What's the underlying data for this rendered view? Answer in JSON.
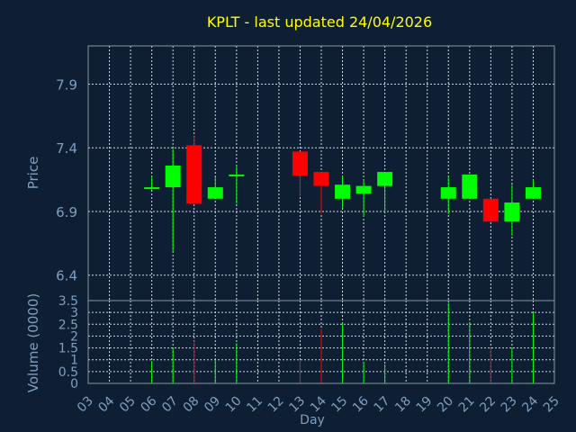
{
  "chart_data": {
    "title": "KPLT - last updated 24/04/2026",
    "type": "candlestick",
    "xlabel": "Day",
    "x_ticks": [
      "03",
      "04",
      "05",
      "06",
      "07",
      "08",
      "09",
      "10",
      "11",
      "12",
      "13",
      "14",
      "15",
      "16",
      "17",
      "18",
      "19",
      "20",
      "21",
      "22",
      "23",
      "24",
      "25"
    ],
    "grid": true,
    "colors": {
      "up": "#00ff00",
      "down": "#ff0000",
      "background": "#0f1f33",
      "title": "#ffff00",
      "axis_text": "#7f9fbf",
      "grid": "#d0d8e0"
    },
    "price_panel": {
      "ylabel": "Price",
      "ylim": [
        6.2,
        8.2
      ],
      "y_ticks": [
        "6.4",
        "6.9",
        "7.4",
        "7.9"
      ],
      "candles": [
        {
          "day": 6,
          "open": 7.08,
          "close": 7.09,
          "high": 7.18,
          "low": 7.07
        },
        {
          "day": 7,
          "open": 7.09,
          "close": 7.26,
          "high": 7.39,
          "low": 6.59
        },
        {
          "day": 8,
          "open": 7.42,
          "close": 6.96,
          "high": 7.5,
          "low": 6.96
        },
        {
          "day": 9,
          "open": 7.0,
          "close": 7.09,
          "high": 7.17,
          "low": 7.0
        },
        {
          "day": 10,
          "open": 7.18,
          "close": 7.19,
          "high": 7.26,
          "low": 6.96
        },
        {
          "day": 13,
          "open": 7.37,
          "close": 7.18,
          "high": 7.37,
          "low": 7.02
        },
        {
          "day": 14,
          "open": 7.21,
          "close": 7.1,
          "high": 7.21,
          "low": 6.88
        },
        {
          "day": 15,
          "open": 7.0,
          "close": 7.11,
          "high": 7.18,
          "low": 6.93
        },
        {
          "day": 16,
          "open": 7.04,
          "close": 7.1,
          "high": 7.15,
          "low": 6.86
        },
        {
          "day": 17,
          "open": 7.1,
          "close": 7.21,
          "high": 7.21,
          "low": 6.89
        },
        {
          "day": 20,
          "open": 7.0,
          "close": 7.09,
          "high": 7.18,
          "low": 6.88
        },
        {
          "day": 21,
          "open": 7.0,
          "close": 7.19,
          "high": 7.19,
          "low": 7.0
        },
        {
          "day": 22,
          "open": 7.0,
          "close": 6.82,
          "high": 7.0,
          "low": 6.82
        },
        {
          "day": 23,
          "open": 6.82,
          "close": 6.97,
          "high": 7.11,
          "low": 6.71
        },
        {
          "day": 24,
          "open": 7.0,
          "close": 7.09,
          "high": 7.15,
          "low": 7.0
        }
      ]
    },
    "volume_panel": {
      "ylabel": "Volume (0000)",
      "ylim": [
        0,
        3.5
      ],
      "y_ticks": [
        "0",
        "0.5",
        "1",
        "1.5",
        "2",
        "2.5",
        "3",
        "3.5"
      ],
      "bars": [
        {
          "day": 6,
          "volume": 0.95,
          "direction": "up"
        },
        {
          "day": 7,
          "volume": 1.5,
          "direction": "up"
        },
        {
          "day": 8,
          "volume": 1.8,
          "direction": "down"
        },
        {
          "day": 9,
          "volume": 1.0,
          "direction": "up"
        },
        {
          "day": 10,
          "volume": 1.7,
          "direction": "up"
        },
        {
          "day": 13,
          "volume": 1.0,
          "direction": "down"
        },
        {
          "day": 14,
          "volume": 2.3,
          "direction": "down"
        },
        {
          "day": 15,
          "volume": 2.55,
          "direction": "up"
        },
        {
          "day": 16,
          "volume": 0.9,
          "direction": "up"
        },
        {
          "day": 17,
          "volume": 0.8,
          "direction": "up"
        },
        {
          "day": 20,
          "volume": 3.4,
          "direction": "up"
        },
        {
          "day": 21,
          "volume": 2.6,
          "direction": "up"
        },
        {
          "day": 22,
          "volume": 1.5,
          "direction": "down"
        },
        {
          "day": 23,
          "volume": 1.5,
          "direction": "up"
        },
        {
          "day": 24,
          "volume": 3.0,
          "direction": "up"
        }
      ]
    }
  }
}
